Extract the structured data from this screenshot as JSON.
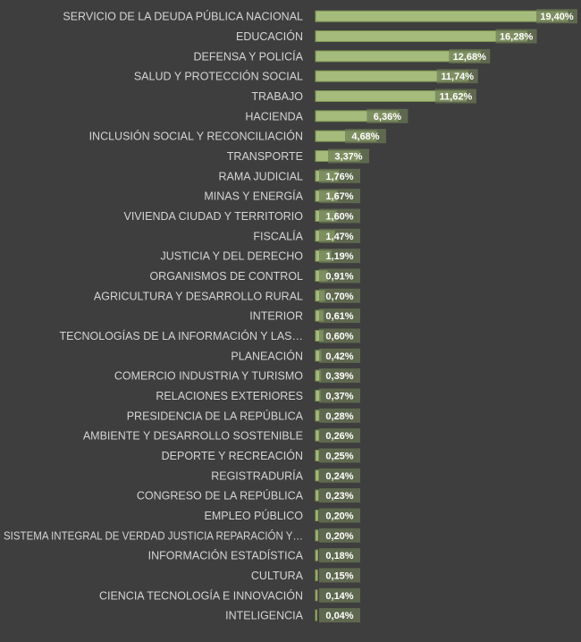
{
  "colors": {
    "background": "#3e3e3e",
    "bar_fill": "#a5bb7b",
    "bar_stroke": "#7d9352",
    "label_box": "#6c7a55",
    "category_text": "#d4d4d4",
    "value_text": "#ffffff"
  },
  "chart_data": {
    "type": "bar",
    "orientation": "horizontal",
    "title": "",
    "xlabel": "",
    "ylabel": "",
    "grid": false,
    "legend": "none",
    "xlim": [
      0,
      19.4
    ],
    "categories": [
      "SERVICIO DE LA DEUDA PÚBLICA NACIONAL",
      "EDUCACIÓN",
      "DEFENSA Y POLICÍA",
      "SALUD Y PROTECCIÓN SOCIAL",
      "TRABAJO",
      "HACIENDA",
      "INCLUSIÓN SOCIAL Y RECONCILIACIÓN",
      "TRANSPORTE",
      "RAMA JUDICIAL",
      "MINAS Y ENERGÍA",
      "VIVIENDA CIUDAD Y TERRITORIO",
      "FISCALÍA",
      "JUSTICIA Y DEL DERECHO",
      "ORGANISMOS DE CONTROL",
      "AGRICULTURA Y DESARROLLO RURAL",
      "INTERIOR",
      "TECNOLOGÍAS DE LA INFORMACIÓN Y LAS…",
      "PLANEACIÓN",
      "COMERCIO INDUSTRIA Y TURISMO",
      "RELACIONES EXTERIORES",
      "PRESIDENCIA DE LA REPÚBLICA",
      "AMBIENTE Y DESARROLLO SOSTENIBLE",
      "DEPORTE Y RECREACIÓN",
      "REGISTRADURÍA",
      "CONGRESO DE LA REPÚBLICA",
      "EMPLEO PÚBLICO",
      "SISTEMA INTEGRAL DE VERDAD JUSTICIA REPARACIÓN Y…",
      "INFORMACIÓN ESTADÍSTICA",
      "CULTURA",
      "CIENCIA TECNOLOGÍA E INNOVACIÓN",
      "INTELIGENCIA"
    ],
    "values": [
      19.4,
      16.28,
      12.68,
      11.74,
      11.62,
      6.36,
      4.68,
      3.37,
      1.76,
      1.67,
      1.6,
      1.47,
      1.19,
      0.91,
      0.7,
      0.61,
      0.6,
      0.42,
      0.39,
      0.37,
      0.28,
      0.26,
      0.25,
      0.24,
      0.23,
      0.2,
      0.2,
      0.18,
      0.15,
      0.14,
      0.04
    ],
    "value_labels": [
      "19,40%",
      "16,28%",
      "12,68%",
      "11,74%",
      "11,62%",
      "6,36%",
      "4,68%",
      "3,37%",
      "1,76%",
      "1,67%",
      "1,60%",
      "1,47%",
      "1,19%",
      "0,91%",
      "0,70%",
      "0,61%",
      "0,60%",
      "0,42%",
      "0,39%",
      "0,37%",
      "0,28%",
      "0,26%",
      "0,25%",
      "0,24%",
      "0,23%",
      "0,20%",
      "0,20%",
      "0,18%",
      "0,15%",
      "0,14%",
      "0,04%"
    ]
  }
}
